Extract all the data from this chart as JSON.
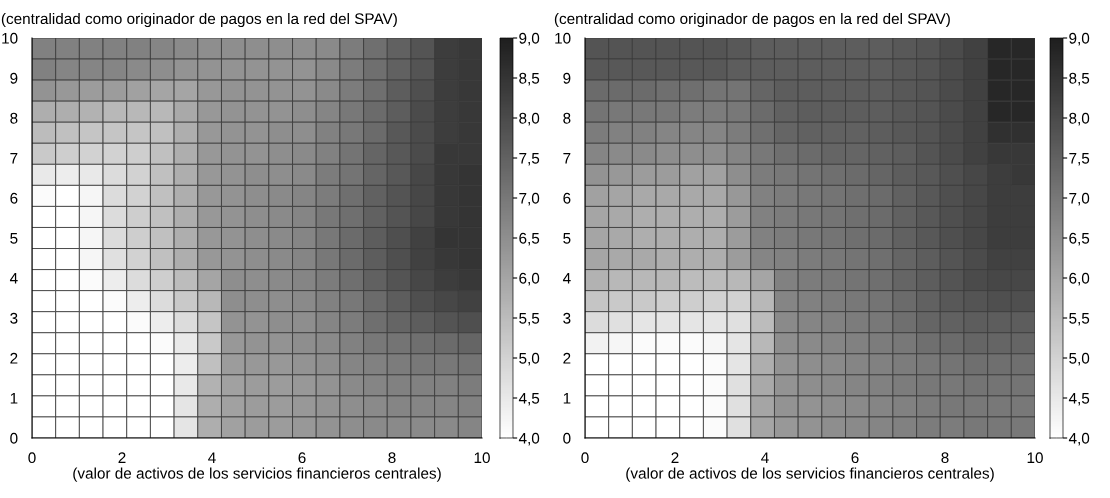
{
  "chart_data": [
    {
      "type": "heatmap",
      "ylabel": "(centralidad como originador de pagos en la red del SPAV)",
      "xlabel": "(valor de activos de los servicios financieros centrales)",
      "xlim": [
        0,
        10
      ],
      "ylim": [
        0,
        10
      ],
      "xticks": [
        0,
        2,
        4,
        6,
        8,
        10
      ],
      "yticks": [
        0,
        1,
        2,
        3,
        4,
        5,
        6,
        7,
        8,
        9,
        10
      ],
      "clim": [
        4,
        9
      ],
      "cticks": [
        {
          "value": 4,
          "label": "4,0"
        },
        {
          "value": 4.5,
          "label": "4,5"
        },
        {
          "value": 5,
          "label": "5,0"
        },
        {
          "value": 5.5,
          "label": "5,5"
        },
        {
          "value": 6,
          "label": "6,0"
        },
        {
          "value": 6.5,
          "label": "6,5"
        },
        {
          "value": 7,
          "label": "7,0"
        },
        {
          "value": 7.5,
          "label": "7,5"
        },
        {
          "value": 8,
          "label": "8,0"
        },
        {
          "value": 8.5,
          "label": "8,5"
        },
        {
          "value": 9,
          "label": "9,0"
        }
      ],
      "cells": [
        [
          6.8,
          6.8,
          6.8,
          6.8,
          6.8,
          6.7,
          6.6,
          6.5,
          6.5,
          6.5,
          6.5,
          6.5,
          6.6,
          6.9,
          7.2,
          7.5,
          7.8,
          8.3,
          8.4
        ],
        [
          6.8,
          6.7,
          6.7,
          6.7,
          6.6,
          6.5,
          6.4,
          6.4,
          6.4,
          6.4,
          6.4,
          6.4,
          6.6,
          6.9,
          7.2,
          7.5,
          7.8,
          8.3,
          8.4
        ],
        [
          6.4,
          6.3,
          6.2,
          6.2,
          6.1,
          6.0,
          6.0,
          6.3,
          6.4,
          6.4,
          6.4,
          6.4,
          6.6,
          6.9,
          7.2,
          7.6,
          7.9,
          8.3,
          8.4
        ],
        [
          5.8,
          5.8,
          5.7,
          5.6,
          5.6,
          5.6,
          5.9,
          6.3,
          6.4,
          6.4,
          6.4,
          6.5,
          6.7,
          7.0,
          7.3,
          7.6,
          8.0,
          8.3,
          8.4
        ],
        [
          5.5,
          5.4,
          5.3,
          5.3,
          5.3,
          5.4,
          5.8,
          6.3,
          6.4,
          6.4,
          6.5,
          6.5,
          6.8,
          7.0,
          7.3,
          7.7,
          8.0,
          8.3,
          8.4
        ],
        [
          5.2,
          5.1,
          5.0,
          5.0,
          5.1,
          5.4,
          5.8,
          6.3,
          6.4,
          6.4,
          6.5,
          6.6,
          6.8,
          7.1,
          7.4,
          7.7,
          8.0,
          8.4,
          8.4
        ],
        [
          4.5,
          4.4,
          4.5,
          4.8,
          5.0,
          5.4,
          5.8,
          6.3,
          6.4,
          6.5,
          6.5,
          6.6,
          6.9,
          7.1,
          7.4,
          7.7,
          8.1,
          8.4,
          8.5
        ],
        [
          4.1,
          4.0,
          4.2,
          4.8,
          5.0,
          5.4,
          5.8,
          6.3,
          6.4,
          6.5,
          6.6,
          6.7,
          6.9,
          7.2,
          7.5,
          7.8,
          8.1,
          8.4,
          8.5
        ],
        [
          4.0,
          4.0,
          4.2,
          4.8,
          5.1,
          5.4,
          5.8,
          6.3,
          6.4,
          6.5,
          6.6,
          6.7,
          7.0,
          7.2,
          7.5,
          7.8,
          8.1,
          8.4,
          8.5
        ],
        [
          4.0,
          4.0,
          4.2,
          4.8,
          5.1,
          5.4,
          5.8,
          6.3,
          6.4,
          6.5,
          6.6,
          6.7,
          7.0,
          7.3,
          7.6,
          7.9,
          8.2,
          8.5,
          8.5
        ],
        [
          4.0,
          4.0,
          4.2,
          4.7,
          5.0,
          5.4,
          5.8,
          6.3,
          6.4,
          6.5,
          6.6,
          6.7,
          7.0,
          7.3,
          7.6,
          7.9,
          8.2,
          8.4,
          8.5
        ],
        [
          4.0,
          4.0,
          4.1,
          4.4,
          4.8,
          5.1,
          5.5,
          6.0,
          6.5,
          6.5,
          6.6,
          6.7,
          6.9,
          7.2,
          7.5,
          7.8,
          8.1,
          8.3,
          8.4
        ],
        [
          4.0,
          4.0,
          4.0,
          4.1,
          4.4,
          4.8,
          5.2,
          5.6,
          6.5,
          6.5,
          6.5,
          6.6,
          6.8,
          7.0,
          7.3,
          7.6,
          7.9,
          8.1,
          8.2
        ],
        [
          4.0,
          4.0,
          4.0,
          4.0,
          4.1,
          4.4,
          4.8,
          5.3,
          6.4,
          6.4,
          6.5,
          6.5,
          6.7,
          6.9,
          7.2,
          7.4,
          7.6,
          7.8,
          7.9
        ],
        [
          4.0,
          4.0,
          4.0,
          4.0,
          4.0,
          4.1,
          4.5,
          5.2,
          6.3,
          6.4,
          6.4,
          6.5,
          6.6,
          6.8,
          7.0,
          7.1,
          7.2,
          7.3,
          7.4
        ],
        [
          4.0,
          4.0,
          4.0,
          4.0,
          4.0,
          4.0,
          4.4,
          5.4,
          6.2,
          6.3,
          6.3,
          6.4,
          6.5,
          6.7,
          6.8,
          6.9,
          7.0,
          7.0,
          7.1
        ],
        [
          4.0,
          4.0,
          4.0,
          4.0,
          4.0,
          4.0,
          4.5,
          5.7,
          6.1,
          6.2,
          6.2,
          6.3,
          6.4,
          6.6,
          6.7,
          6.8,
          6.8,
          6.8,
          6.9
        ],
        [
          4.0,
          4.0,
          4.0,
          4.0,
          4.0,
          4.0,
          4.6,
          5.8,
          6.1,
          6.2,
          6.2,
          6.3,
          6.4,
          6.5,
          6.6,
          6.7,
          6.7,
          6.7,
          6.8
        ],
        [
          4.0,
          4.0,
          4.0,
          4.0,
          4.0,
          4.0,
          4.6,
          5.8,
          6.1,
          6.2,
          6.2,
          6.3,
          6.4,
          6.5,
          6.6,
          6.6,
          6.6,
          6.6,
          6.7
        ]
      ]
    },
    {
      "type": "heatmap",
      "ylabel": "(centralidad como originador de pagos en la red del SPAV)",
      "xlabel": "(valor de activos de los servicios financieros centrales)",
      "xlim": [
        0,
        10
      ],
      "ylim": [
        0,
        10
      ],
      "xticks": [
        0,
        2,
        4,
        6,
        8,
        10
      ],
      "yticks": [
        0,
        1,
        2,
        3,
        4,
        5,
        6,
        7,
        8,
        9,
        10
      ],
      "clim": [
        4,
        9
      ],
      "cticks": [
        {
          "value": 4,
          "label": "4,0"
        },
        {
          "value": 4.5,
          "label": "4,5"
        },
        {
          "value": 5,
          "label": "5,0"
        },
        {
          "value": 5.5,
          "label": "5,5"
        },
        {
          "value": 6,
          "label": "6,0"
        },
        {
          "value": 6.5,
          "label": "6,5"
        },
        {
          "value": 7,
          "label": "7,0"
        },
        {
          "value": 7.5,
          "label": "7,5"
        },
        {
          "value": 8,
          "label": "8,0"
        },
        {
          "value": 8.5,
          "label": "8,5"
        },
        {
          "value": 9,
          "label": "9,0"
        }
      ],
      "cells": [
        [
          7.8,
          7.8,
          7.8,
          7.8,
          7.8,
          7.8,
          7.7,
          7.6,
          7.6,
          7.6,
          7.6,
          7.6,
          7.6,
          7.7,
          7.8,
          8.0,
          8.2,
          8.8,
          8.8
        ],
        [
          7.7,
          7.7,
          7.7,
          7.7,
          7.7,
          7.7,
          7.6,
          7.6,
          7.6,
          7.6,
          7.6,
          7.6,
          7.6,
          7.7,
          7.8,
          8.0,
          8.2,
          8.8,
          8.8
        ],
        [
          7.3,
          7.3,
          7.3,
          7.2,
          7.2,
          7.1,
          7.1,
          7.4,
          7.6,
          7.6,
          7.6,
          7.6,
          7.6,
          7.7,
          7.8,
          8.0,
          8.2,
          8.8,
          8.8
        ],
        [
          7.1,
          7.0,
          7.0,
          7.0,
          6.9,
          6.9,
          7.0,
          7.3,
          7.5,
          7.6,
          7.6,
          7.6,
          7.6,
          7.7,
          7.8,
          8.0,
          8.2,
          8.8,
          8.8
        ],
        [
          6.9,
          6.8,
          6.8,
          6.7,
          6.7,
          6.7,
          6.9,
          7.2,
          7.4,
          7.5,
          7.5,
          7.5,
          7.6,
          7.7,
          7.8,
          8.0,
          8.2,
          8.6,
          8.6
        ],
        [
          6.7,
          6.6,
          6.6,
          6.5,
          6.5,
          6.5,
          6.7,
          7.0,
          7.2,
          7.3,
          7.4,
          7.4,
          7.5,
          7.6,
          7.8,
          8.0,
          8.2,
          8.4,
          8.4
        ],
        [
          6.4,
          6.3,
          6.2,
          6.2,
          6.1,
          6.1,
          6.5,
          6.9,
          7.0,
          7.1,
          7.2,
          7.3,
          7.4,
          7.6,
          7.7,
          7.9,
          8.1,
          8.3,
          8.4
        ],
        [
          6.1,
          6.0,
          5.9,
          5.9,
          5.9,
          5.9,
          6.3,
          6.8,
          6.9,
          7.0,
          7.1,
          7.2,
          7.3,
          7.5,
          7.7,
          7.9,
          8.1,
          8.3,
          8.3
        ],
        [
          6.0,
          5.9,
          5.8,
          5.8,
          5.8,
          5.8,
          6.2,
          6.8,
          6.9,
          7.0,
          7.1,
          7.2,
          7.3,
          7.5,
          7.7,
          7.9,
          8.1,
          8.3,
          8.3
        ],
        [
          6.0,
          5.9,
          5.8,
          5.8,
          5.8,
          5.8,
          6.2,
          6.8,
          6.9,
          7.0,
          7.1,
          7.2,
          7.3,
          7.5,
          7.7,
          7.9,
          8.1,
          8.3,
          8.3
        ],
        [
          6.0,
          5.9,
          5.9,
          5.8,
          5.8,
          5.8,
          6.2,
          6.7,
          6.8,
          6.9,
          7.0,
          7.1,
          7.2,
          7.4,
          7.6,
          7.8,
          8.0,
          8.2,
          8.2
        ],
        [
          5.7,
          5.6,
          5.6,
          5.6,
          5.5,
          5.5,
          5.6,
          6.0,
          6.8,
          6.9,
          7.0,
          7.1,
          7.2,
          7.4,
          7.6,
          7.8,
          8.0,
          8.1,
          8.1
        ],
        [
          5.3,
          5.2,
          5.2,
          5.1,
          5.1,
          5.0,
          5.0,
          5.6,
          6.7,
          6.8,
          6.9,
          7.0,
          7.1,
          7.3,
          7.5,
          7.7,
          7.8,
          7.9,
          7.9
        ],
        [
          4.8,
          4.7,
          4.6,
          4.6,
          4.6,
          4.6,
          4.7,
          5.5,
          6.6,
          6.7,
          6.8,
          6.9,
          7.0,
          7.2,
          7.4,
          7.5,
          7.6,
          7.6,
          7.6
        ],
        [
          4.3,
          4.2,
          4.1,
          4.1,
          4.1,
          4.2,
          4.6,
          5.6,
          6.5,
          6.6,
          6.7,
          6.8,
          6.9,
          7.0,
          7.2,
          7.3,
          7.4,
          7.4,
          7.4
        ],
        [
          4.0,
          4.0,
          4.0,
          4.0,
          4.0,
          4.1,
          4.6,
          5.8,
          6.4,
          6.5,
          6.6,
          6.7,
          6.8,
          6.9,
          7.0,
          7.1,
          7.2,
          7.2,
          7.2
        ],
        [
          4.0,
          4.0,
          4.0,
          4.0,
          4.0,
          4.1,
          4.7,
          5.9,
          6.4,
          6.5,
          6.6,
          6.7,
          6.8,
          6.9,
          7.0,
          7.0,
          7.1,
          7.1,
          7.1
        ],
        [
          4.0,
          4.0,
          4.0,
          4.0,
          4.0,
          4.1,
          4.7,
          6.0,
          6.4,
          6.4,
          6.5,
          6.6,
          6.7,
          6.8,
          6.9,
          7.0,
          7.0,
          7.0,
          7.0
        ],
        [
          4.0,
          4.0,
          4.0,
          4.0,
          4.0,
          4.1,
          4.7,
          6.0,
          6.3,
          6.4,
          6.5,
          6.6,
          6.7,
          6.8,
          6.9,
          6.9,
          7.0,
          7.0,
          7.0
        ]
      ]
    }
  ]
}
